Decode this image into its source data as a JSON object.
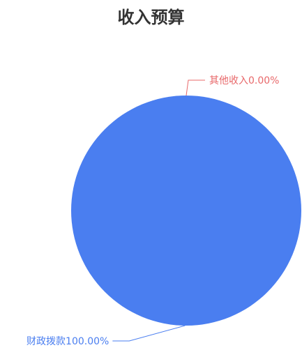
{
  "chart_data": {
    "type": "pie",
    "title": "收入预算",
    "slices": [
      {
        "label": "其他收入",
        "value": 0.0,
        "percent_label": "0.00%",
        "color": "#e8686a"
      },
      {
        "label": "财政拨款",
        "value": 100.0,
        "percent_label": "100.00%",
        "color": "#4a7ef0"
      }
    ],
    "label_text": [
      "其他收入0.00%",
      "财政拨款100.00%"
    ]
  }
}
